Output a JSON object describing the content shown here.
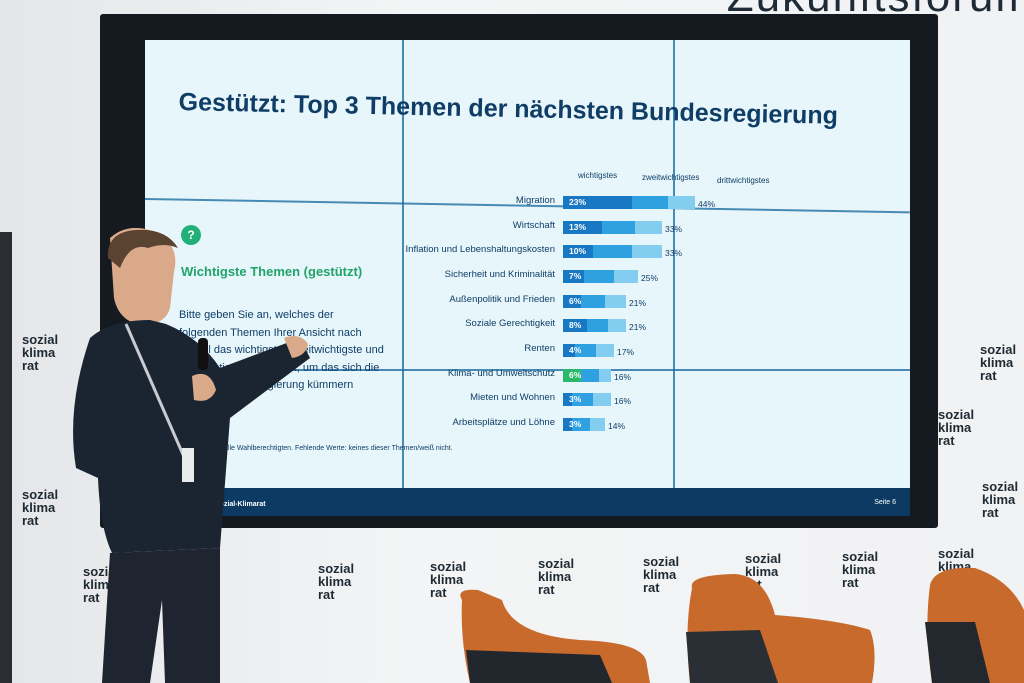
{
  "background_text": "Zukunftsforum",
  "logo": {
    "l1": "sozial",
    "l2": "klima",
    "l3": "rat"
  },
  "slide": {
    "title": "Gestützt: Top 3 Themen der nächsten Bundesregierung",
    "col_headers": [
      "wichtigstes",
      "zweitwichtigstes",
      "drittwichtigstes"
    ],
    "question_icon": "?",
    "subheading": "Wichtigste Themen (gestützt)",
    "body": "Bitte geben Sie an, welches der folgenden Themen Ihrer Ansicht nach aktuell das wichtigste, zweitwichtigste und drittwichtigste Thema ist, um das sich die nächste Bundesregierung kümmern sollte.",
    "note": "Basis: alle Wahlberechtigten. Fehlende Werte: keines dieser Themen/weiß nicht.",
    "footer_left": "Sozial-Klimarat",
    "footer_right": "Seite 6"
  },
  "chart_data": {
    "type": "bar",
    "categories": [
      "Migration",
      "Wirtschaft",
      "Inflation und Lebenshaltungskosten",
      "Sicherheit und Kriminalität",
      "Außenpolitik und Frieden",
      "Soziale Gerechtigkeit",
      "Renten",
      "Klima- und Umweltschutz",
      "Mieten und Wohnen",
      "Arbeitsplätze und Löhne"
    ],
    "first_labels": [
      "23%",
      "13%",
      "10%",
      "7%",
      "6%",
      "8%",
      "4%",
      "6%",
      "3%",
      "3%"
    ],
    "first": [
      23,
      13,
      10,
      7,
      6,
      8,
      4,
      6,
      3,
      3
    ],
    "totals": [
      44,
      33,
      33,
      25,
      21,
      21,
      17,
      16,
      16,
      14
    ],
    "total_labels": [
      "44%",
      "33%",
      "33%",
      "25%",
      "21%",
      "21%",
      "17%",
      "16%",
      "16%",
      "14%"
    ],
    "colors": {
      "first": "#1878c4",
      "second": "#2fa0e0",
      "third": "#82cdf0",
      "highlight": "#2bb86a"
    },
    "highlight_category": "Klima- und Umweltschutz"
  }
}
